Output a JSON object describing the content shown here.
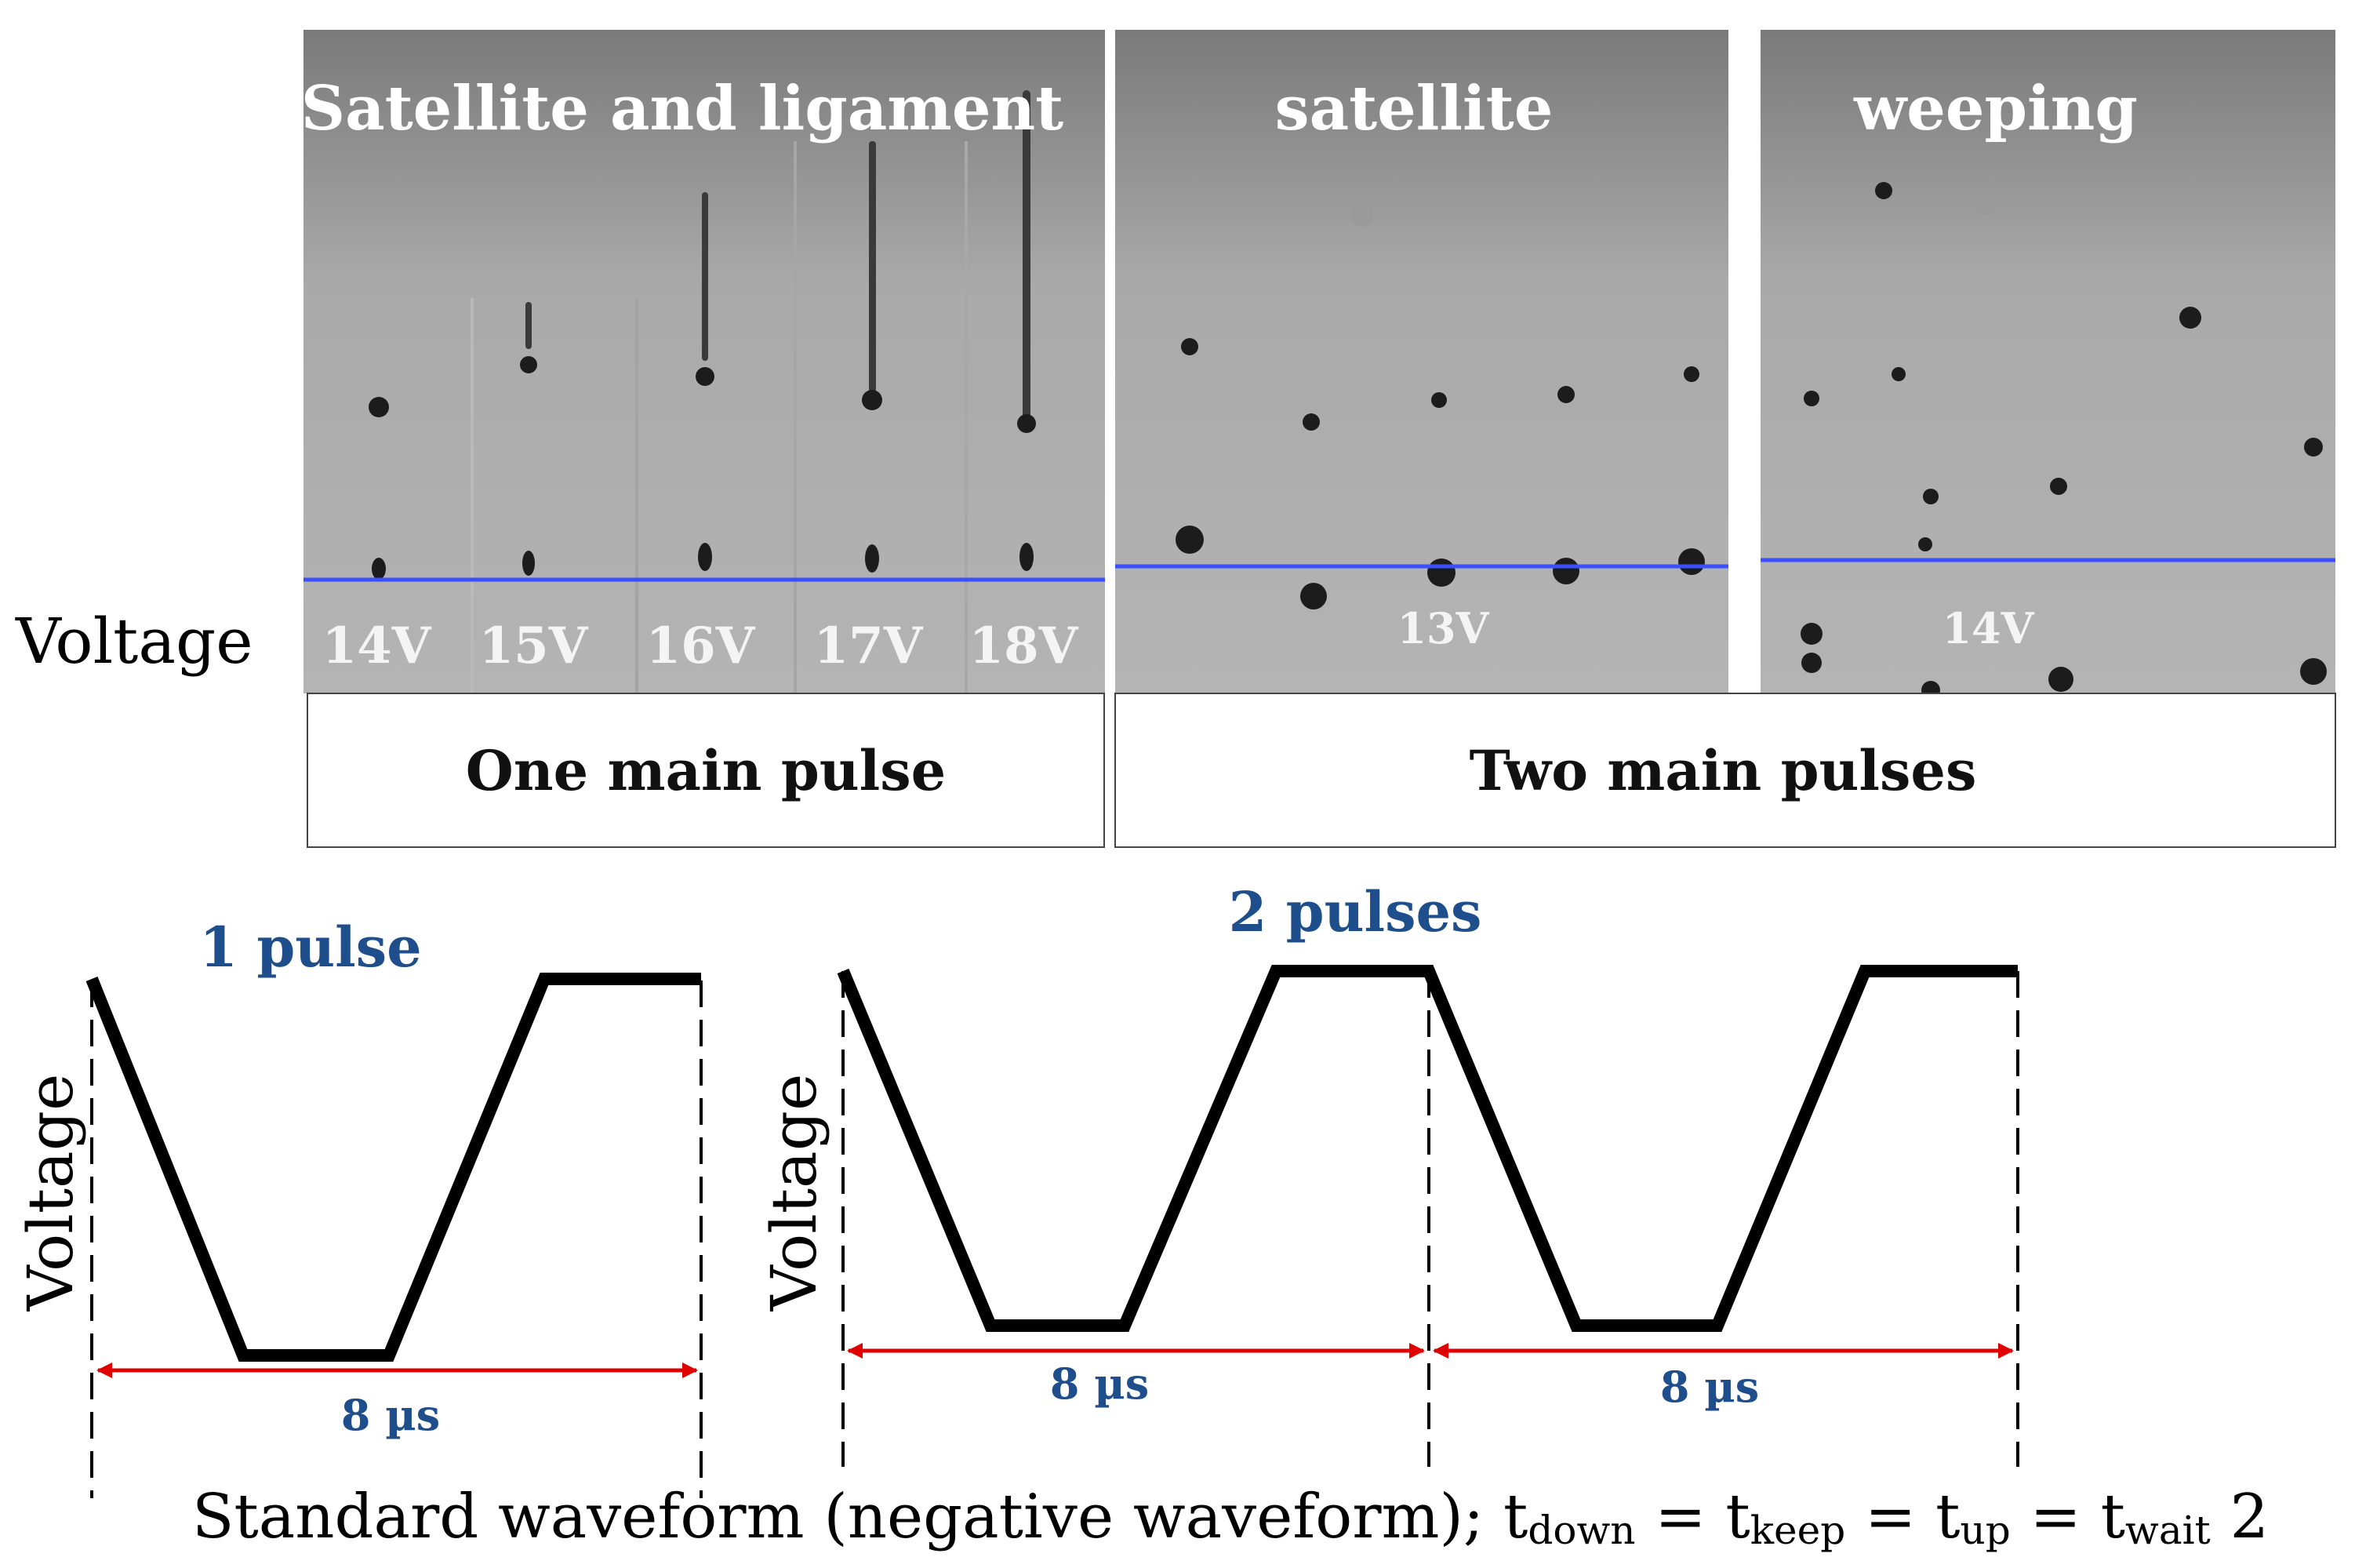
{
  "panels": {
    "left_title": "Satellite and ligament",
    "mid_title": "satellite",
    "right_title": "weeping",
    "voltage_row_label": "Voltage",
    "left_voltages": [
      "14V",
      "15V",
      "16V",
      "17V",
      "18V"
    ],
    "mid_voltage": "13V",
    "right_voltage": "14V",
    "left_box_label": "One main pulse",
    "right_box_label": "Two main pulses"
  },
  "waveforms": {
    "one": {
      "title": "1 pulse",
      "axis_label": "Voltage",
      "duration_label": "8 µs"
    },
    "two": {
      "title": "2 pulses",
      "axis_label": "Voltage",
      "duration_label_1": "8 µs",
      "duration_label_2": "8 µs"
    }
  },
  "caption": {
    "main": "Standard waveform (negative waveform); t",
    "sub_down": "down",
    "eq1": " = t",
    "sub_keep": "keep",
    "eq2": " = t",
    "sub_up": "up",
    "eq3": " = t",
    "sub_wait": "wait",
    "tail": " 2"
  },
  "colors": {
    "title_blue": "#1f4e8c",
    "arrow_red": "#e00000",
    "baseline_blue": "#3a4fff"
  }
}
